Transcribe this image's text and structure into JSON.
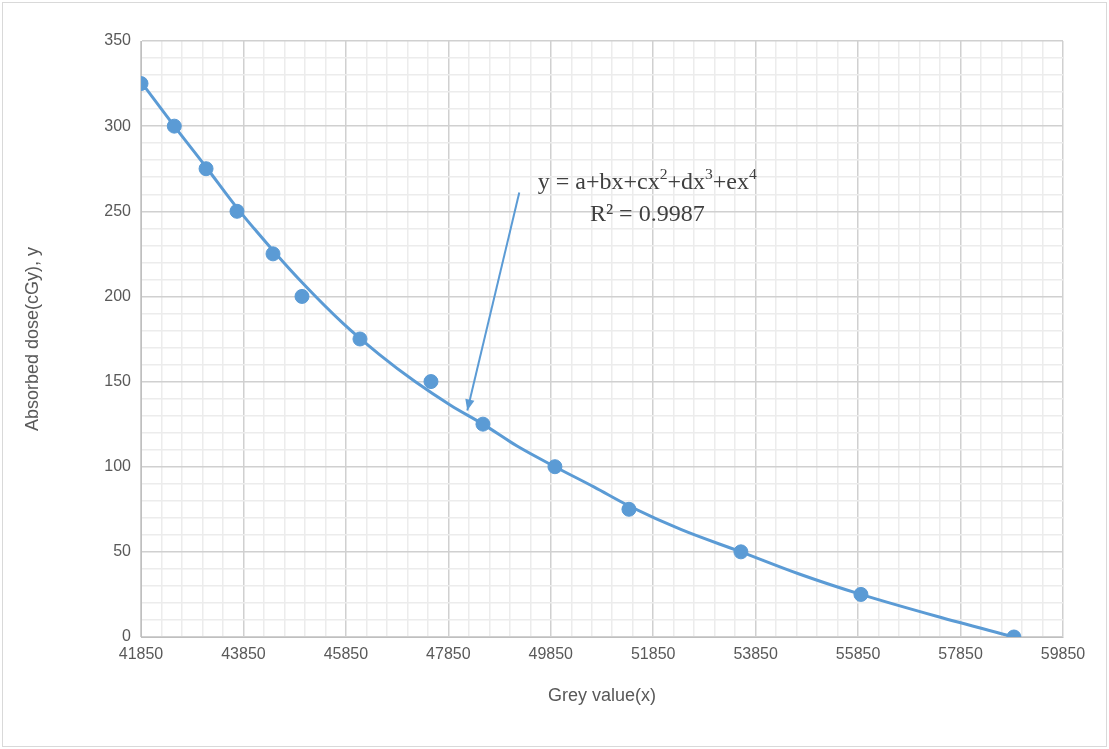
{
  "chart_data": {
    "type": "scatter",
    "xlabel": "Grey value(x)",
    "ylabel": "Absorbed dose(cGy), y",
    "x": [
      41850,
      42500,
      43120,
      43724,
      44427,
      44993,
      46125,
      47511,
      48526,
      49931,
      51376,
      53562,
      55905,
      58892
    ],
    "series": [
      {
        "color": "#5b9bd5",
        "marker": "circle",
        "values": [
          325,
          300,
          275,
          250,
          225,
          200,
          175,
          150,
          125,
          100,
          75,
          50,
          25,
          0
        ]
      },
      {
        "type": "line",
        "color": "#5b9bd5",
        "marker": "none",
        "line_style": "solid",
        "x": [
          41850,
          42500,
          43120,
          43724,
          44427,
          45000,
          45800,
          46500,
          47200,
          47900,
          48526,
          49200,
          49931,
          50700,
          51376,
          52400,
          53562,
          54700,
          55905,
          57400,
          58892
        ],
        "values": [
          326,
          300,
          276,
          252,
          227,
          208,
          184,
          166,
          150,
          136,
          125,
          112,
          100,
          88,
          77,
          63,
          50,
          37,
          25,
          12,
          0
        ]
      }
    ],
    "xlim": [
      41850,
      59850
    ],
    "ylim": [
      0,
      350
    ],
    "xticks": [
      41850,
      {
        "value": 42250,
        "label": null
      },
      {
        "value": 42650,
        "label": null
      },
      {
        "value": 43050,
        "label": null
      },
      {
        "value": 43450,
        "label": null
      },
      43850,
      {
        "value": 44250,
        "label": null
      },
      {
        "value": 44650,
        "label": null
      },
      {
        "value": 45050,
        "label": null
      },
      {
        "value": 45450,
        "label": null
      },
      45850,
      {
        "value": 46250,
        "label": null
      },
      {
        "value": 46650,
        "label": null
      },
      {
        "value": 47050,
        "label": null
      },
      {
        "value": 47450,
        "label": null
      },
      47850,
      {
        "value": 48250,
        "label": null
      },
      {
        "value": 48650,
        "label": null
      },
      {
        "value": 49050,
        "label": null
      },
      {
        "value": 49450,
        "label": null
      },
      49850,
      {
        "value": 50250,
        "label": null
      },
      {
        "value": 50650,
        "label": null
      },
      {
        "value": 51050,
        "label": null
      },
      {
        "value": 51450,
        "label": null
      },
      51850,
      {
        "value": 52250,
        "label": null
      },
      {
        "value": 52650,
        "label": null
      },
      {
        "value": 53050,
        "label": null
      },
      {
        "value": 53450,
        "label": null
      },
      53850,
      {
        "value": 54250,
        "label": null
      },
      {
        "value": 54650,
        "label": null
      },
      {
        "value": 55050,
        "label": null
      },
      {
        "value": 55450,
        "label": null
      },
      55850,
      {
        "value": 56250,
        "label": null
      },
      {
        "value": 56650,
        "label": null
      },
      {
        "value": 57050,
        "label": null
      },
      {
        "value": 57450,
        "label": null
      },
      57850,
      {
        "value": 58250,
        "label": null
      },
      {
        "value": 58650,
        "label": null
      },
      {
        "value": 59050,
        "label": null
      },
      {
        "value": 59450,
        "label": null
      },
      59850
    ],
    "yticks": [
      0,
      {
        "value": 10,
        "label": null
      },
      {
        "value": 20,
        "label": null
      },
      {
        "value": 30,
        "label": null
      },
      {
        "value": 40,
        "label": null
      },
      50,
      {
        "value": 60,
        "label": null
      },
      {
        "value": 70,
        "label": null
      },
      {
        "value": 80,
        "label": null
      },
      {
        "value": 90,
        "label": null
      },
      100,
      {
        "value": 110,
        "label": null
      },
      {
        "value": 120,
        "label": null
      },
      {
        "value": 130,
        "label": null
      },
      {
        "value": 140,
        "label": null
      },
      150,
      {
        "value": 160,
        "label": null
      },
      {
        "value": 170,
        "label": null
      },
      {
        "value": 180,
        "label": null
      },
      {
        "value": 190,
        "label": null
      },
      200,
      {
        "value": 210,
        "label": null
      },
      {
        "value": 220,
        "label": null
      },
      {
        "value": 230,
        "label": null
      },
      {
        "value": 240,
        "label": null
      },
      250,
      {
        "value": 260,
        "label": null
      },
      {
        "value": 270,
        "label": null
      },
      {
        "value": 280,
        "label": null
      },
      {
        "value": 290,
        "label": null
      },
      300,
      {
        "value": 310,
        "label": null
      },
      {
        "value": 320,
        "label": null
      },
      {
        "value": 330,
        "label": null
      },
      {
        "value": 340,
        "label": null
      },
      350
    ],
    "grid": true,
    "legend": false,
    "annotations": [
      {
        "text": "y = a+bx+cx$^{2}$+dx$^{3}$+ex$^{4}$",
        "x": 48220,
        "y": 133
      },
      "R² = 0.9987"
    ]
  }
}
